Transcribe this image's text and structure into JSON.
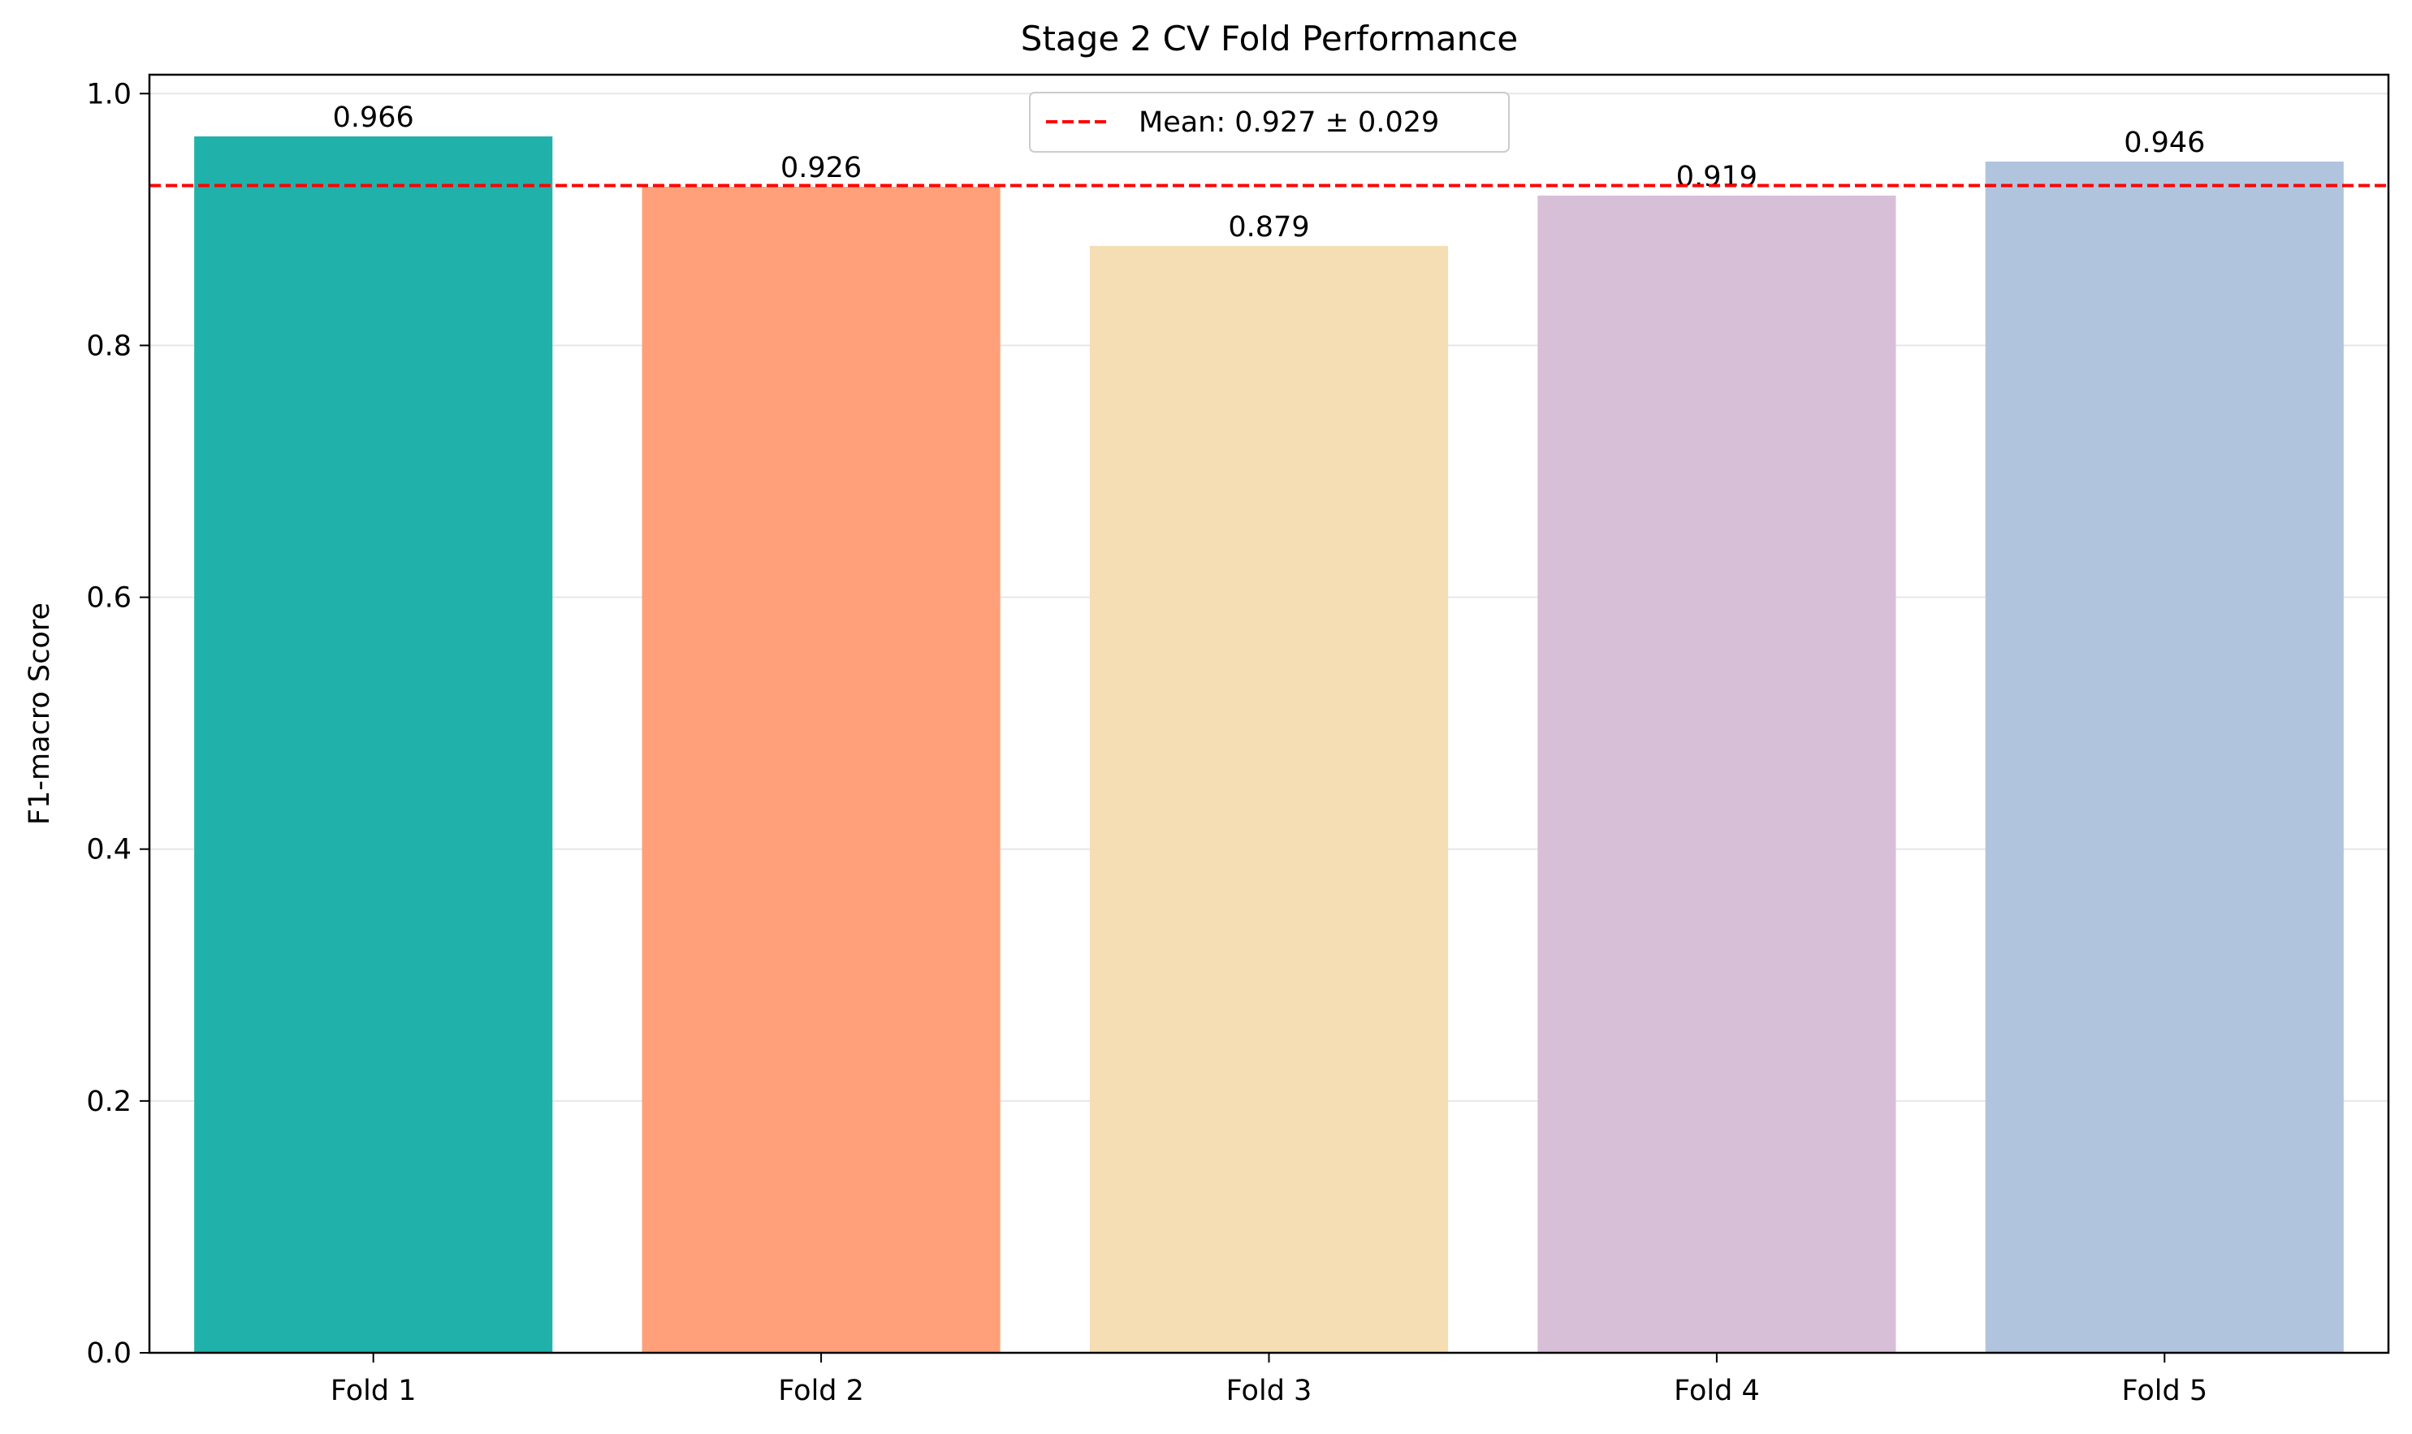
{
  "chart_data": {
    "type": "bar",
    "title": "Stage 2 CV Fold Performance",
    "xlabel": "",
    "ylabel": "F1-macro Score",
    "categories": [
      "Fold 1",
      "Fold 2",
      "Fold 3",
      "Fold 4",
      "Fold 5"
    ],
    "values": [
      0.966,
      0.926,
      0.879,
      0.919,
      0.946
    ],
    "value_labels": [
      "0.966",
      "0.926",
      "0.879",
      "0.919",
      "0.946"
    ],
    "colors": [
      "#20b2aa",
      "#ffa07a",
      "#f5deb3",
      "#d8bfd8",
      "#b0c4de"
    ],
    "ylim": [
      0,
      1.015
    ],
    "yticks": [
      0.0,
      0.2,
      0.4,
      0.6,
      0.8,
      1.0
    ],
    "ytick_labels": [
      "0.0",
      "0.2",
      "0.4",
      "0.6",
      "0.8",
      "1.0"
    ],
    "grid": {
      "y": true,
      "x": false
    },
    "mean_line": {
      "value": 0.927,
      "color": "#ff0000",
      "style": "dashed"
    },
    "legend": {
      "entries": [
        "Mean: 0.927 ± 0.029"
      ],
      "placement": "upper-center"
    }
  }
}
